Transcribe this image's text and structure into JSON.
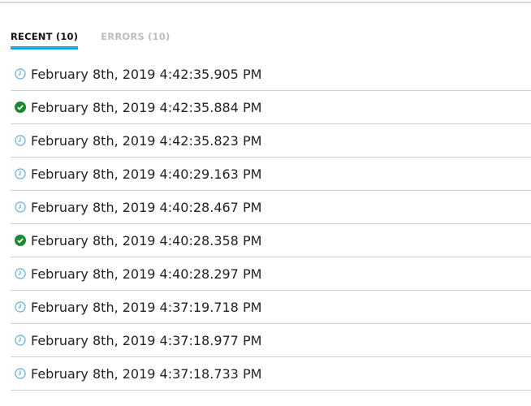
{
  "tabs": [
    {
      "label": "RECENT (10)",
      "active": true
    },
    {
      "label": "ERRORS (10)",
      "active": false
    }
  ],
  "colors": {
    "accent": "#1ea7e6",
    "success": "#1a8a2e",
    "pending": "#5aaee0"
  },
  "rows": [
    {
      "status": "clock-icon",
      "text": "February 8th, 2019 4:42:35.905 PM"
    },
    {
      "status": "check-circle-icon",
      "text": "February 8th, 2019 4:42:35.884 PM"
    },
    {
      "status": "clock-icon",
      "text": "February 8th, 2019 4:42:35.823 PM"
    },
    {
      "status": "clock-icon",
      "text": "February 8th, 2019 4:40:29.163 PM"
    },
    {
      "status": "clock-icon",
      "text": "February 8th, 2019 4:40:28.467 PM"
    },
    {
      "status": "check-circle-icon",
      "text": "February 8th, 2019 4:40:28.358 PM"
    },
    {
      "status": "clock-icon",
      "text": "February 8th, 2019 4:40:28.297 PM"
    },
    {
      "status": "clock-icon",
      "text": "February 8th, 2019 4:37:19.718 PM"
    },
    {
      "status": "clock-icon",
      "text": "February 8th, 2019 4:37:18.977 PM"
    },
    {
      "status": "clock-icon",
      "text": "February 8th, 2019 4:37:18.733 PM"
    }
  ]
}
